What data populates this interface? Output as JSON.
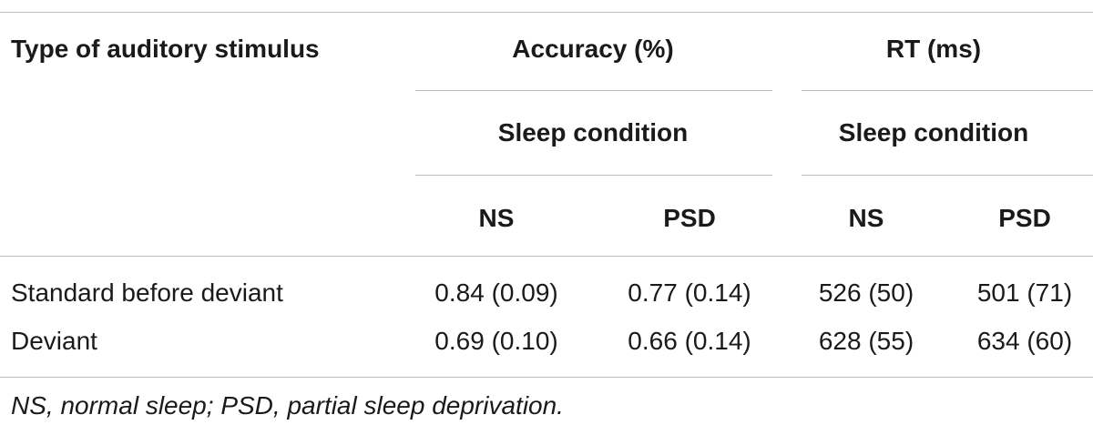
{
  "table": {
    "header": {
      "row_label": "Type of auditory stimulus",
      "group_accuracy": "Accuracy (%)",
      "group_rt": "RT (ms)",
      "sub_accuracy": "Sleep condition",
      "sub_rt": "Sleep condition",
      "columns": [
        "NS",
        "PSD",
        "NS",
        "PSD"
      ]
    },
    "rows": [
      {
        "label": "Standard before deviant",
        "values": [
          "0.84 (0.09)",
          "0.77 (0.14)",
          "526 (50)",
          "501 (71)"
        ]
      },
      {
        "label": "Deviant",
        "values": [
          "0.69 (0.10)",
          "0.66 (0.14)",
          "628 (55)",
          "634 (60)"
        ]
      }
    ],
    "footnote": "NS, normal sleep; PSD, partial sleep deprivation."
  }
}
